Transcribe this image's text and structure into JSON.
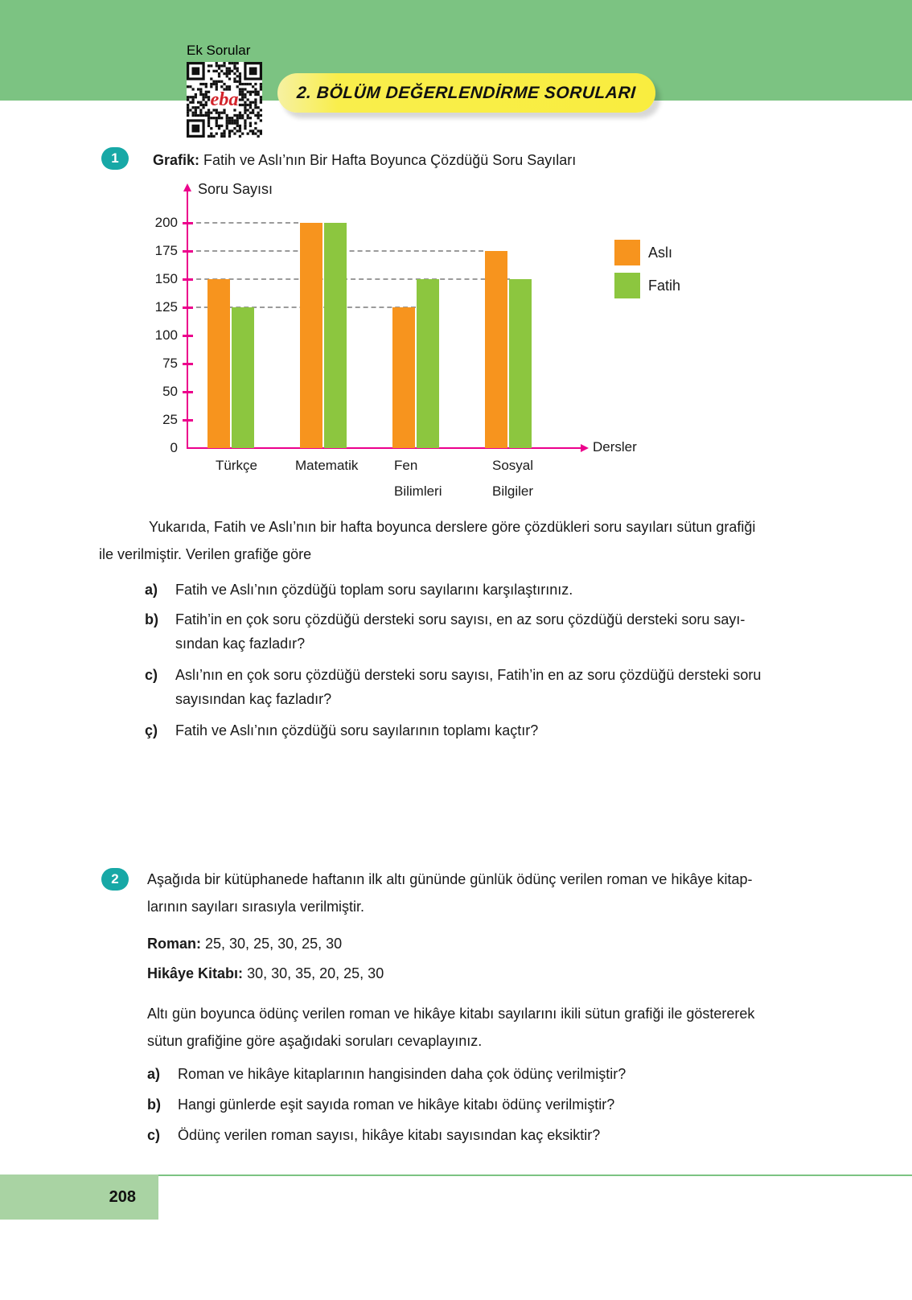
{
  "page": {
    "header": {
      "qr_label": "Ek Sorular",
      "banner": "2. BÖLÜM DEĞERLENDİRME SORULARI",
      "colors": {
        "band_green": "#7cc382",
        "banner_yellow": "#f9ed3f",
        "badge_teal": "#17a8a6"
      }
    },
    "footer": {
      "page_number": "208"
    }
  },
  "q1": {
    "number": "1",
    "title_label": "Grafik:",
    "title_text": "Fatih ve Aslı’nın Bir Hafta Boyunca Çözdüğü Soru Sayıları",
    "paragraph_line1": "Yukarıda, Fatih ve Aslı’nın bir hafta boyunca derslere göre çözdükleri soru sayıları sütun grafiği",
    "paragraph_line2": "ile verilmiştir. Verilen grafiğe göre",
    "items": [
      {
        "label": "a)",
        "lines": [
          "Fatih ve Aslı’nın çözdüğü toplam soru sayılarını karşılaştırınız."
        ]
      },
      {
        "label": "b)",
        "lines": [
          "Fatih’in en çok soru çözdüğü dersteki soru sayısı, en az soru çözdüğü dersteki soru sayı-",
          "sından kaç fazladır?"
        ]
      },
      {
        "label": "c)",
        "lines": [
          "Aslı’nın en çok soru çözdüğü dersteki soru sayısı, Fatih’in en az soru çözdüğü dersteki soru",
          "sayısından kaç fazladır?"
        ]
      },
      {
        "label": "ç)",
        "lines": [
          "Fatih ve Aslı’nın çözdüğü soru sayılarının toplamı kaçtır?"
        ]
      }
    ]
  },
  "chart_data": {
    "type": "bar",
    "title": "Fatih ve Aslı’nın Bir Hafta Boyunca Çözdüğü Soru Sayıları",
    "categories": [
      "Türkçe",
      "Matematik",
      "Fen Bilimleri",
      "Sosyal Bilgiler"
    ],
    "category_label_lines": [
      [
        "Türkçe"
      ],
      [
        "Matematik"
      ],
      [
        "Fen",
        "Bilimleri"
      ],
      [
        "Sosyal",
        "Bilgiler"
      ]
    ],
    "series": [
      {
        "name": "Aslı",
        "color": "#f7941e",
        "values": [
          150,
          200,
          125,
          175
        ]
      },
      {
        "name": "Fatih",
        "color": "#8cc63f",
        "values": [
          125,
          200,
          150,
          150
        ]
      }
    ],
    "ylabel": "Soru Sayısı",
    "xlabel": "Dersler",
    "yticks": [
      0,
      25,
      50,
      75,
      100,
      125,
      150,
      175,
      200
    ],
    "ylim": [
      0,
      200
    ],
    "grid": "dashed-at-125-150-175-200",
    "grid_dashed_levels": [
      125,
      150,
      175,
      200
    ],
    "legend_position": "right",
    "axis_color": "#ec008c"
  },
  "q2": {
    "number": "2",
    "line1": "Aşağıda bir kütüphanede haftanın ilk altı gününde günlük ödünç verilen roman ve hikâye kitap-",
    "line2": "larının sayıları sırasıyla verilmiştir.",
    "roman_label": "Roman:",
    "roman_values": "25, 30, 25, 30, 25, 30",
    "hikaye_label": "Hikâye Kitabı:",
    "hikaye_values": "30, 30, 35, 20, 25, 30",
    "paragraph_line1": "Altı gün boyunca ödünç verilen roman ve hikâye kitabı sayılarını ikili sütun grafiği ile göstererek",
    "paragraph_line2": "sütun grafiğine göre aşağıdaki soruları cevaplayınız.",
    "items": [
      {
        "label": "a)",
        "lines": [
          "Roman ve hikâye kitaplarının hangisinden daha çok ödünç verilmiştir?"
        ]
      },
      {
        "label": "b)",
        "lines": [
          "Hangi günlerde eşit sayıda roman ve hikâye kitabı ödünç verilmiştir?"
        ]
      },
      {
        "label": "c)",
        "lines": [
          "Ödünç verilen roman sayısı, hikâye kitabı sayısından kaç eksiktir?"
        ]
      }
    ]
  }
}
